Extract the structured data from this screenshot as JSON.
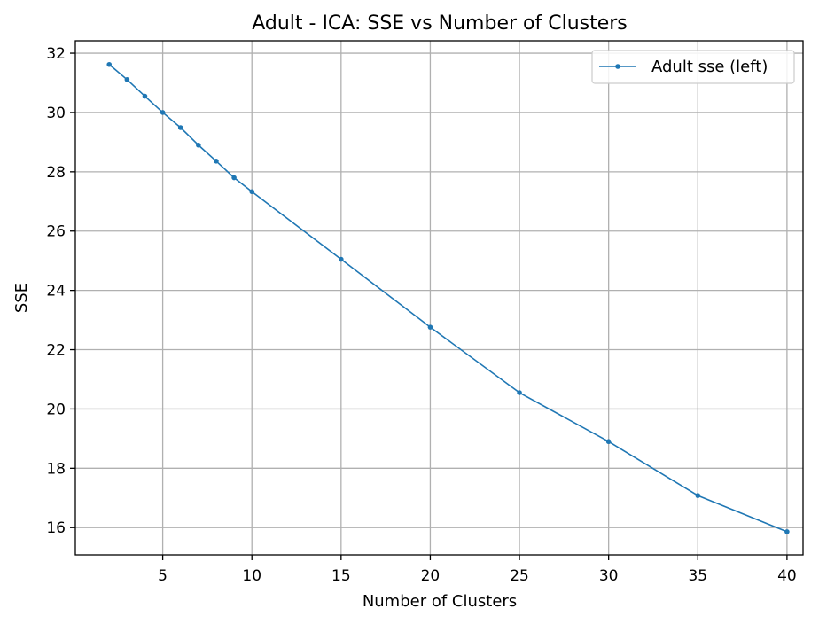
{
  "chart_data": {
    "type": "line",
    "title": "Adult - ICA: SSE vs Number of Clusters",
    "xlabel": "Number of Clusters",
    "ylabel": "SSE",
    "xlim": [
      0.1,
      40.9
    ],
    "ylim": [
      15.08,
      32.42
    ],
    "xticks": [
      5,
      10,
      15,
      20,
      25,
      30,
      35,
      40
    ],
    "yticks": [
      16,
      18,
      20,
      22,
      24,
      26,
      28,
      30,
      32
    ],
    "grid": true,
    "legend_position": "top-right",
    "series": [
      {
        "name": "Adult sse (left)",
        "color": "#1f77b4",
        "marker": "circle",
        "x": [
          2,
          3,
          4,
          5,
          6,
          7,
          8,
          9,
          10,
          15,
          20,
          25,
          30,
          35,
          40
        ],
        "y": [
          31.62,
          31.11,
          30.55,
          30.0,
          29.49,
          28.9,
          28.36,
          27.8,
          27.33,
          25.05,
          22.76,
          20.55,
          18.9,
          17.08,
          15.86
        ]
      }
    ]
  }
}
